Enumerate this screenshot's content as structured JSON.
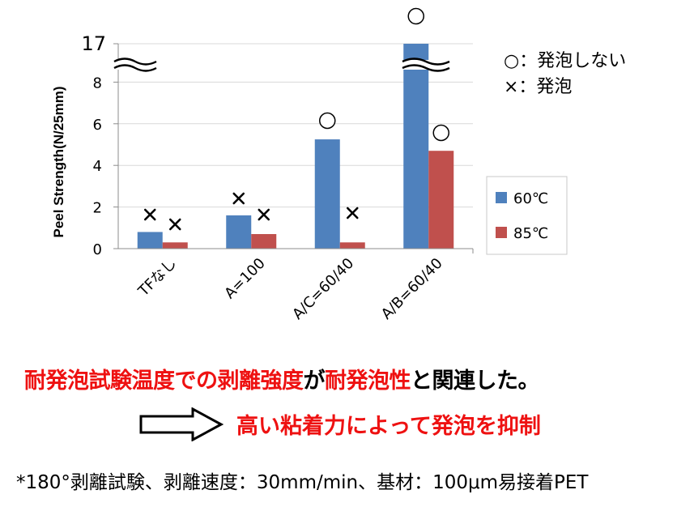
{
  "chart_data": {
    "type": "bar",
    "ylabel": "Peel Strength(N/25mm)",
    "y_ticks": [
      "0",
      "2",
      "4",
      "6",
      "8",
      "17"
    ],
    "axis_break": {
      "from": 8,
      "to": 17
    },
    "categories": [
      "TFなし",
      "A=100",
      "A/C=60/40",
      "A/B=60/40"
    ],
    "series": [
      {
        "name": "60℃",
        "color": "#4f81bd",
        "values": [
          0.8,
          1.6,
          5.25,
          17
        ],
        "markers": [
          "×",
          "×",
          "○",
          "○"
        ]
      },
      {
        "name": "85℃",
        "color": "#c0504d",
        "values": [
          0.3,
          0.7,
          0.3,
          4.7
        ],
        "markers": [
          "×",
          "×",
          "×",
          "○"
        ]
      }
    ],
    "marker_legend": [
      "○：発泡しない",
      "×：発泡"
    ]
  },
  "conclusion": {
    "part1": "耐発泡試験温度での剥離強度",
    "part2": "が",
    "part3": "耐発泡性",
    "part4": "と関連した。"
  },
  "result": "高い粘着力によって発泡を抑制",
  "footnote": "*180°剥離試験、剥離速度：30mm/min、基材：100μm易接着PET"
}
